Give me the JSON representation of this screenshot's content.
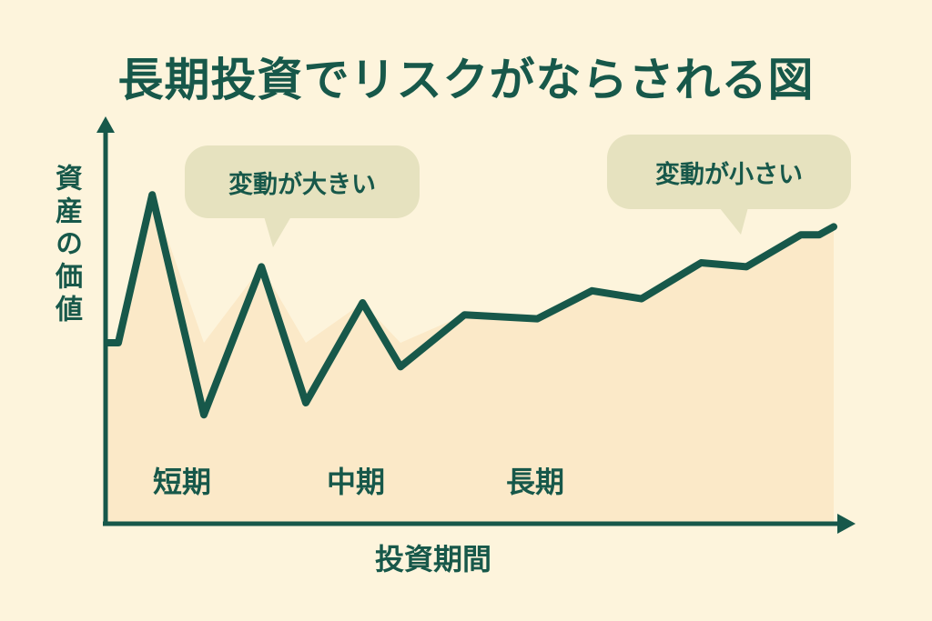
{
  "chart_data": {
    "type": "line",
    "title": "長期投資でリスクがならされる図",
    "xlabel": "投資期間",
    "ylabel": "資産の価値",
    "grid": false,
    "x": [
      0.25,
      1.75,
      6.4,
      13.5,
      21.4,
      27.5,
      35.3,
      40.5,
      49.3,
      59.3,
      66.8,
      73.6,
      81.8,
      88,
      95.5,
      98,
      100
    ],
    "y": [
      45,
      45,
      82,
      27,
      64,
      30,
      55,
      39,
      52,
      51,
      58,
      56,
      65,
      64,
      72,
      72,
      74
    ],
    "xlim": [
      0,
      100
    ],
    "ylim": [
      0,
      100
    ],
    "fill_baseline": 45,
    "period_labels": [
      "短期",
      "中期",
      "長期"
    ],
    "annotations": [
      {
        "text": "変動が大きい"
      },
      {
        "text": "変動が小さい"
      }
    ],
    "colors": {
      "line": "#17584a",
      "background": "#fdf4dc",
      "fill": "#fbe9c8",
      "bubble": "#e6e2bf"
    }
  }
}
